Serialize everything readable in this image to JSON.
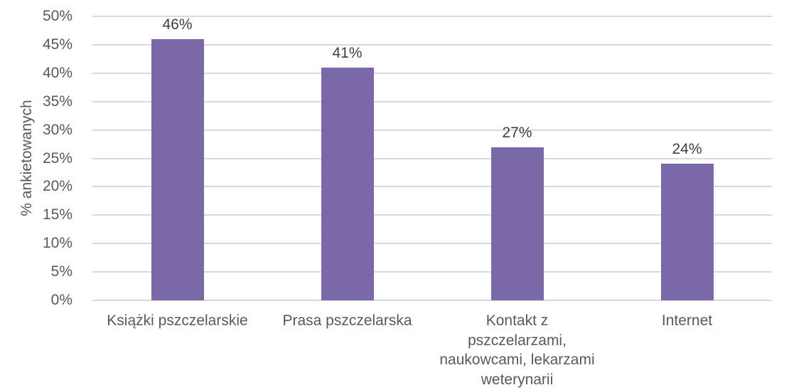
{
  "chart_data": {
    "type": "bar",
    "title": "",
    "xlabel": "",
    "ylabel": "% ankietowanych",
    "categories": [
      "Książki pszczelarskie",
      "Prasa pszczelarska",
      "Kontakt z pszczelarzami, naukowcami, lekarzami weterynarii",
      "Internet"
    ],
    "values": [
      46,
      41,
      27,
      24
    ],
    "value_labels": [
      "46%",
      "41%",
      "27%",
      "24%"
    ],
    "ylim": [
      0,
      50
    ],
    "ytick_step": 5,
    "ytick_labels": [
      "0%",
      "5%",
      "10%",
      "15%",
      "20%",
      "25%",
      "30%",
      "35%",
      "40%",
      "45%",
      "50%"
    ],
    "grid": "horizontal",
    "legend": "none",
    "colors": {
      "bar": "#7B68A8",
      "gridline": "#D9D9D9",
      "axis_text": "#595959",
      "data_label": "#3F3F3F",
      "background": "#FFFFFF"
    }
  }
}
